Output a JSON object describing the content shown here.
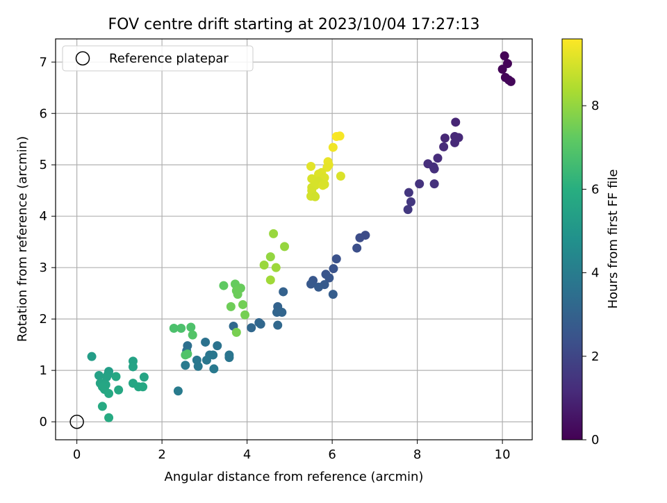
{
  "chart_data": {
    "type": "scatter",
    "title": "FOV centre drift starting at 2023/10/04 17:27:13",
    "xlabel": "Angular distance from reference (arcmin)",
    "ylabel": "Rotation from reference (arcmin)",
    "xlim": [
      -0.5,
      10.7
    ],
    "ylim": [
      -0.35,
      7.45
    ],
    "xticks": [
      0,
      2,
      4,
      6,
      8,
      10
    ],
    "yticks": [
      0,
      1,
      2,
      3,
      4,
      5,
      6,
      7
    ],
    "grid": true,
    "legend": {
      "placement": "top-left",
      "entries": [
        "Reference platepar"
      ]
    },
    "colorbar": {
      "label": "Hours from first FF file",
      "range": [
        0,
        9.6
      ],
      "ticks": [
        0,
        2,
        4,
        6,
        8
      ],
      "colormap": "viridis"
    },
    "reference_point": {
      "x": 0,
      "y": 0
    },
    "points": [
      [
        10.05,
        7.12,
        0.05
      ],
      [
        10.12,
        6.97,
        0.08
      ],
      [
        10.0,
        6.86,
        0.1
      ],
      [
        10.07,
        6.7,
        0.12
      ],
      [
        10.15,
        6.65,
        0.14
      ],
      [
        10.2,
        6.62,
        0.16
      ],
      [
        8.9,
        5.83,
        1.0
      ],
      [
        8.65,
        5.52,
        1.05
      ],
      [
        8.88,
        5.55,
        1.08
      ],
      [
        8.97,
        5.53,
        1.1
      ],
      [
        8.88,
        5.43,
        1.12
      ],
      [
        8.62,
        5.35,
        1.15
      ],
      [
        8.48,
        5.13,
        1.2
      ],
      [
        8.25,
        5.02,
        1.25
      ],
      [
        8.38,
        4.96,
        1.28
      ],
      [
        8.4,
        4.92,
        1.3
      ],
      [
        8.05,
        4.63,
        1.4
      ],
      [
        8.4,
        4.63,
        1.35
      ],
      [
        7.8,
        4.46,
        1.5
      ],
      [
        7.85,
        4.28,
        1.55
      ],
      [
        7.78,
        4.13,
        1.6
      ],
      [
        6.78,
        3.63,
        2.2
      ],
      [
        6.65,
        3.58,
        2.25
      ],
      [
        6.58,
        3.38,
        2.3
      ],
      [
        6.1,
        3.17,
        2.4
      ],
      [
        6.03,
        2.98,
        2.45
      ],
      [
        5.85,
        2.87,
        2.5
      ],
      [
        5.93,
        2.8,
        2.55
      ],
      [
        5.55,
        2.75,
        2.6
      ],
      [
        5.5,
        2.68,
        2.65
      ],
      [
        5.82,
        2.67,
        2.7
      ],
      [
        5.68,
        2.62,
        2.75
      ],
      [
        6.02,
        2.48,
        2.8
      ],
      [
        4.85,
        2.53,
        3.0
      ],
      [
        4.72,
        2.24,
        3.05
      ],
      [
        4.7,
        2.13,
        3.1
      ],
      [
        4.82,
        2.13,
        3.12
      ],
      [
        4.28,
        1.93,
        3.15
      ],
      [
        4.32,
        1.9,
        3.18
      ],
      [
        4.1,
        1.83,
        3.2
      ],
      [
        4.72,
        1.88,
        3.22
      ],
      [
        3.68,
        1.86,
        3.25
      ],
      [
        2.6,
        1.48,
        3.5
      ],
      [
        2.58,
        1.38,
        3.55
      ],
      [
        3.02,
        1.55,
        3.6
      ],
      [
        3.3,
        1.48,
        3.65
      ],
      [
        3.58,
        1.3,
        3.7
      ],
      [
        3.58,
        1.25,
        3.72
      ],
      [
        3.12,
        1.3,
        3.75
      ],
      [
        3.2,
        1.3,
        3.78
      ],
      [
        3.05,
        1.2,
        3.8
      ],
      [
        2.82,
        1.2,
        3.82
      ],
      [
        2.85,
        1.08,
        3.85
      ],
      [
        3.22,
        1.03,
        3.88
      ],
      [
        2.55,
        1.1,
        3.9
      ],
      [
        2.38,
        0.6,
        3.95
      ],
      [
        0.35,
        1.27,
        5.3
      ],
      [
        0.75,
        0.98,
        5.35
      ],
      [
        0.73,
        0.92,
        5.4
      ],
      [
        0.52,
        0.9,
        5.45
      ],
      [
        0.7,
        0.87,
        5.5
      ],
      [
        0.62,
        0.75,
        5.55
      ],
      [
        0.55,
        0.75,
        5.6
      ],
      [
        0.68,
        0.72,
        5.62
      ],
      [
        0.6,
        0.68,
        5.65
      ],
      [
        0.65,
        0.63,
        5.68
      ],
      [
        0.92,
        0.88,
        5.7
      ],
      [
        0.98,
        0.62,
        5.72
      ],
      [
        0.75,
        0.55,
        5.75
      ],
      [
        0.6,
        0.3,
        5.8
      ],
      [
        0.75,
        0.08,
        5.82
      ],
      [
        1.32,
        1.18,
        5.5
      ],
      [
        1.32,
        1.07,
        5.55
      ],
      [
        1.58,
        0.87,
        5.6
      ],
      [
        1.32,
        0.75,
        5.65
      ],
      [
        1.45,
        0.68,
        5.7
      ],
      [
        1.55,
        0.68,
        5.72
      ],
      [
        2.28,
        1.82,
        6.8
      ],
      [
        2.45,
        1.82,
        6.82
      ],
      [
        2.68,
        1.84,
        6.85
      ],
      [
        2.55,
        1.3,
        6.9
      ],
      [
        2.6,
        1.32,
        6.92
      ],
      [
        2.72,
        1.69,
        6.95
      ],
      [
        3.45,
        2.65,
        7.2
      ],
      [
        3.72,
        2.68,
        7.3
      ],
      [
        3.85,
        2.6,
        7.35
      ],
      [
        3.75,
        2.55,
        7.38
      ],
      [
        3.78,
        2.48,
        7.4
      ],
      [
        3.62,
        2.24,
        7.45
      ],
      [
        3.9,
        2.28,
        7.5
      ],
      [
        3.95,
        2.08,
        7.55
      ],
      [
        3.75,
        1.74,
        7.6
      ],
      [
        4.62,
        3.66,
        8.1
      ],
      [
        4.88,
        3.41,
        8.05
      ],
      [
        4.55,
        3.21,
        8.0
      ],
      [
        4.4,
        3.05,
        8.1
      ],
      [
        4.68,
        3.0,
        8.15
      ],
      [
        4.55,
        2.76,
        8.2
      ],
      [
        6.1,
        5.55,
        9.55
      ],
      [
        6.18,
        5.56,
        9.5
      ],
      [
        6.02,
        5.34,
        9.4
      ],
      [
        5.9,
        5.06,
        9.3
      ],
      [
        5.92,
        5.0,
        9.28
      ],
      [
        5.88,
        4.95,
        9.25
      ],
      [
        5.5,
        4.97,
        9.2
      ],
      [
        5.75,
        4.85,
        9.15
      ],
      [
        5.68,
        4.82,
        9.12
      ],
      [
        5.82,
        4.75,
        9.1
      ],
      [
        6.2,
        4.78,
        9.08
      ],
      [
        5.52,
        4.73,
        9.05
      ],
      [
        5.68,
        4.68,
        9.0
      ],
      [
        5.6,
        4.6,
        9.02
      ],
      [
        5.78,
        4.6,
        9.1
      ],
      [
        5.82,
        4.62,
        9.05
      ],
      [
        5.52,
        4.56,
        9.0
      ],
      [
        5.52,
        4.5,
        8.98
      ],
      [
        5.58,
        4.4,
        8.95
      ],
      [
        5.5,
        4.39,
        8.97
      ],
      [
        5.6,
        4.38,
        8.92
      ]
    ]
  }
}
